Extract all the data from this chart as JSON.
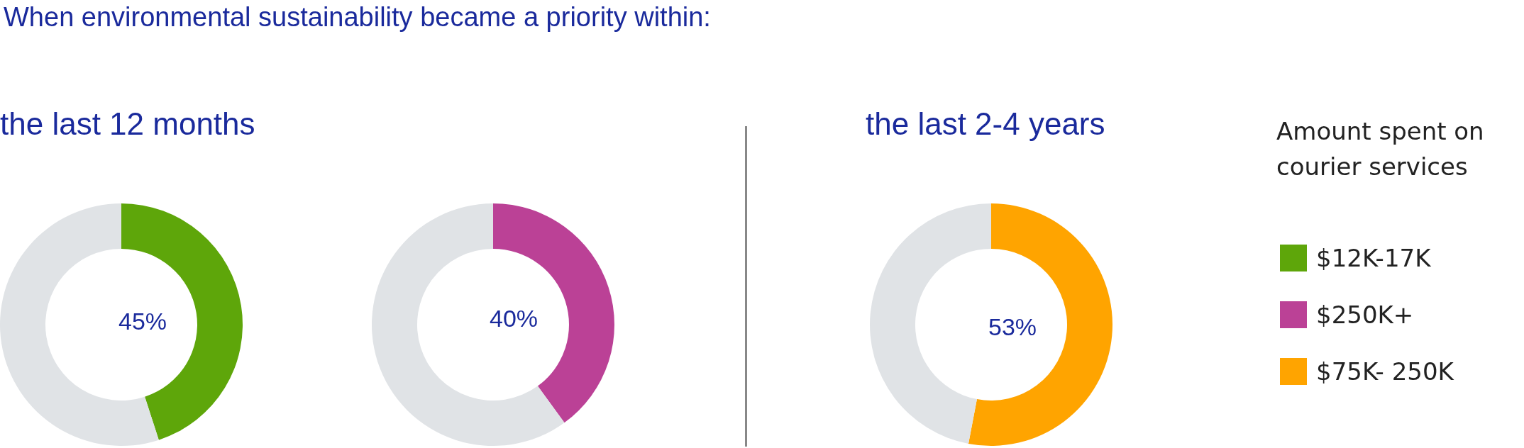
{
  "chart_data": [
    {
      "type": "donut",
      "title": "When environmental sustainability became a priority within:",
      "subtitle": "the last 12 months",
      "categories": [
        "$12K-17K",
        null
      ],
      "values": [
        45,
        55
      ],
      "colors": [
        "#5ea60a",
        "#e0e3e6"
      ],
      "value_labels": [
        "45%",
        null
      ]
    },
    {
      "type": "donut",
      "categories": [
        "$250K+",
        null
      ],
      "values": [
        40,
        60
      ],
      "colors": [
        "#bb4196",
        "#e0e3e6"
      ],
      "value_labels": [
        "40%",
        null
      ]
    },
    {
      "type": "donut",
      "subtitle": "the last 2-4 years",
      "categories": [
        "$75K- 250K",
        null
      ],
      "values": [
        53,
        47
      ],
      "colors": [
        "#ffa400",
        "#e0e3e6"
      ],
      "value_labels": [
        "53%",
        null
      ],
      "legend": "right",
      "legend_title": "Amount spent on courier services"
    }
  ]
}
